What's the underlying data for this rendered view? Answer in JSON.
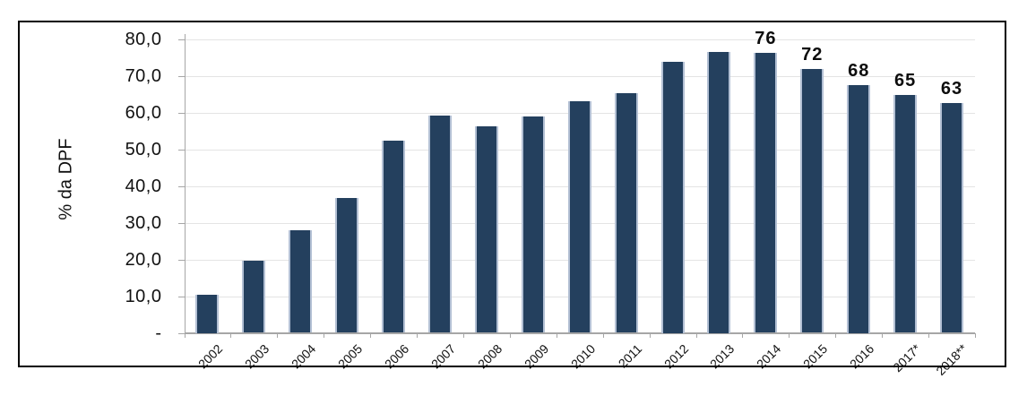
{
  "chart_data": {
    "type": "bar",
    "title": "",
    "ylabel": "% da DPF",
    "xlabel": "",
    "categories": [
      "2002",
      "2003",
      "2004",
      "2005",
      "2006",
      "2007",
      "2008",
      "2009",
      "2010",
      "2011",
      "2012",
      "2013",
      "2014",
      "2015",
      "2016",
      "2017*",
      "2018**"
    ],
    "values": [
      10.5,
      19.7,
      27.9,
      36.7,
      52.3,
      59.2,
      56.4,
      58.9,
      63.2,
      65.3,
      74.0,
      76.5,
      76.4,
      71.9,
      67.5,
      64.8,
      62.6
    ],
    "data_labels": [
      null,
      null,
      null,
      null,
      null,
      null,
      null,
      null,
      null,
      null,
      null,
      null,
      "76",
      "72",
      "68",
      "65",
      "63"
    ],
    "ylim": [
      0,
      80
    ],
    "ytick_step": 10,
    "ytick_labels": [
      "-",
      "10,0",
      "20,0",
      "30,0",
      "40,0",
      "50,0",
      "60,0",
      "70,0",
      "80,0"
    ],
    "grid": "horizontal",
    "legend": "none",
    "colors": {
      "bar_fill": "#24405e",
      "bar_edge": "#b3c0d4",
      "gridline": "#e4e4e4",
      "axis": "#a6a6a6",
      "text": "#111111",
      "frame_border": "#000000",
      "background": "#ffffff"
    }
  }
}
